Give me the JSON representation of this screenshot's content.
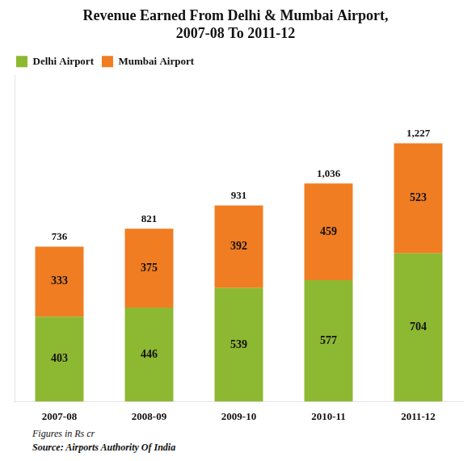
{
  "chart_data": {
    "type": "bar",
    "title": "Revenue Earned From Delhi & Mumbai Airport,\n2007-08 To 2011-12",
    "categories": [
      "2007-08",
      "2008-09",
      "2009-10",
      "2010-11",
      "2011-12"
    ],
    "series": [
      {
        "name": "Delhi Airport",
        "color": "#8db832",
        "values": [
          403,
          446,
          539,
          577,
          704
        ]
      },
      {
        "name": "Mumbai Airport",
        "color": "#f07d22",
        "values": [
          333,
          375,
          392,
          459,
          523
        ]
      }
    ],
    "stacked": true,
    "data_labels": true,
    "totals": [
      736,
      821,
      931,
      1036,
      1227
    ],
    "total_labels": [
      "736",
      "821",
      "931",
      "1,036",
      "1,227"
    ],
    "ylim": [
      0,
      1550
    ],
    "tick_labels": "x",
    "grid": false,
    "legend": "upper left",
    "footnotes": [
      "Figures in Rs cr",
      "Source: Airports Authority Of India"
    ]
  }
}
